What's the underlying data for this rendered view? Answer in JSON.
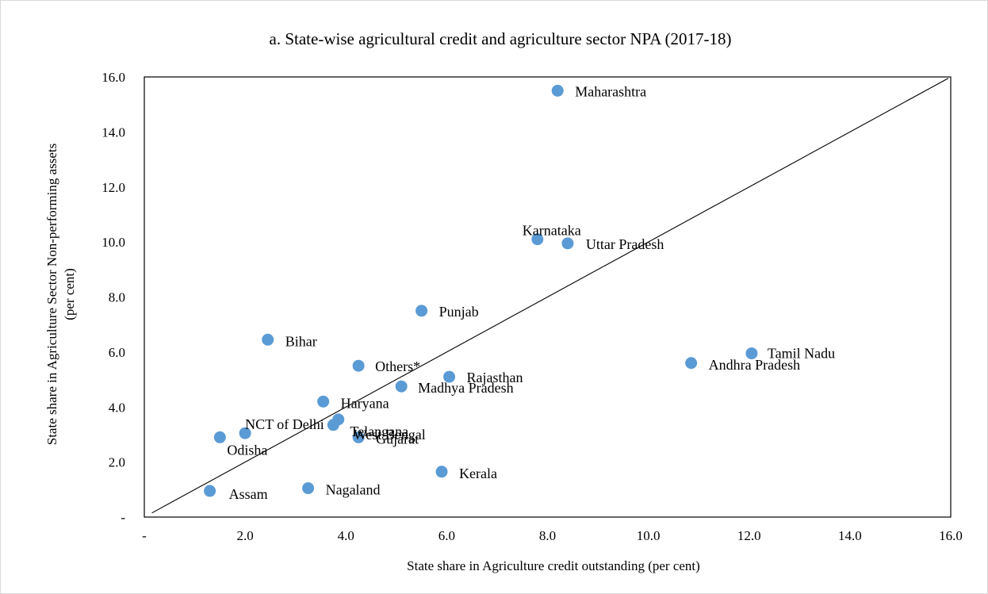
{
  "chart_data": {
    "type": "scatter",
    "title": "a. State-wise agricultural credit and agriculture sector NPA (2017-18)",
    "xlabel": "State share in Agriculture credit outstanding (per cent)",
    "ylabel_line1": "State share in Agriculture Sector Non-performing assets",
    "ylabel_line2": "(per cent)",
    "xlim": [
      0,
      16
    ],
    "ylim": [
      0,
      16
    ],
    "x_ticks": [
      {
        "value": 0,
        "label": "-"
      },
      {
        "value": 2,
        "label": "2.0"
      },
      {
        "value": 4,
        "label": "4.0"
      },
      {
        "value": 6,
        "label": "6.0"
      },
      {
        "value": 8,
        "label": "8.0"
      },
      {
        "value": 10,
        "label": "10.0"
      },
      {
        "value": 12,
        "label": "12.0"
      },
      {
        "value": 14,
        "label": "14.0"
      },
      {
        "value": 16,
        "label": "16.0"
      }
    ],
    "y_ticks": [
      {
        "value": 0,
        "label": "-"
      },
      {
        "value": 2,
        "label": "2.0"
      },
      {
        "value": 4,
        "label": "4.0"
      },
      {
        "value": 6,
        "label": "6.0"
      },
      {
        "value": 8,
        "label": "8.0"
      },
      {
        "value": 10,
        "label": "10.0"
      },
      {
        "value": 12,
        "label": "12.0"
      },
      {
        "value": 14,
        "label": "14.0"
      },
      {
        "value": 16,
        "label": "16.0"
      }
    ],
    "grid": false,
    "reference_line": "45-degree line",
    "marker_color": "#5b9bd5",
    "points": [
      {
        "label": "Maharashtra",
        "x": 8.2,
        "y": 15.5
      },
      {
        "label": "Karnataka",
        "x": 7.8,
        "y": 10.1
      },
      {
        "label": "Uttar Pradesh",
        "x": 8.4,
        "y": 9.95
      },
      {
        "label": "Punjab",
        "x": 5.5,
        "y": 7.5
      },
      {
        "label": "Bihar",
        "x": 2.45,
        "y": 6.45
      },
      {
        "label": "Tamil Nadu",
        "x": 12.05,
        "y": 5.95
      },
      {
        "label": "Andhra Pradesh",
        "x": 10.85,
        "y": 5.6
      },
      {
        "label": "Others*",
        "x": 4.25,
        "y": 5.5
      },
      {
        "label": "Rajasthan",
        "x": 6.05,
        "y": 5.1
      },
      {
        "label": "Madhya Pradesh",
        "x": 5.1,
        "y": 4.75
      },
      {
        "label": "Haryana",
        "x": 3.55,
        "y": 4.2
      },
      {
        "label": "West Bengal",
        "x": 3.85,
        "y": 3.55
      },
      {
        "label": "Telangana",
        "x": 3.75,
        "y": 3.35
      },
      {
        "label": "NCT of Delhi",
        "x": 2.0,
        "y": 3.05
      },
      {
        "label": "Odisha",
        "x": 1.5,
        "y": 2.9
      },
      {
        "label": "Gujarat",
        "x": 4.25,
        "y": 2.9
      },
      {
        "label": "Kerala",
        "x": 5.9,
        "y": 1.65
      },
      {
        "label": "Nagaland",
        "x": 3.25,
        "y": 1.05
      },
      {
        "label": "Assam",
        "x": 1.3,
        "y": 0.95
      }
    ]
  }
}
